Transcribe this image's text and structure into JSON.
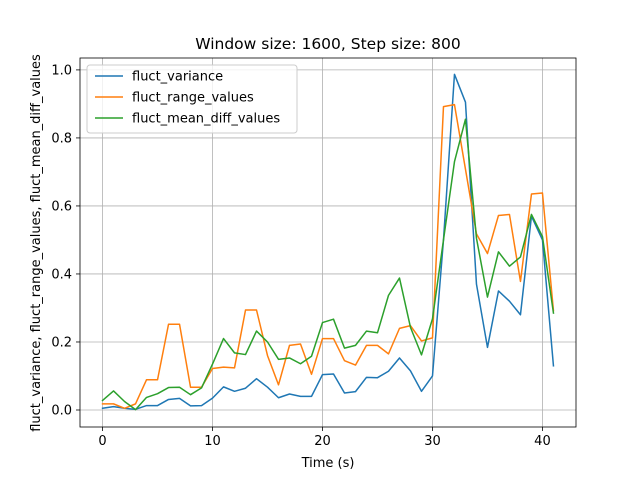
{
  "chart_data": {
    "type": "line",
    "title": "Window size: 1600, Step size: 800",
    "xlabel": "Time (s)",
    "ylabel": "fluct_variance, fluct_range_values, fluct_mean_diff_values",
    "xlim": [
      -2.05,
      43.05
    ],
    "ylim": [
      -0.05,
      1.035
    ],
    "xticks": [
      0,
      10,
      20,
      30,
      40
    ],
    "yticks": [
      0.0,
      0.2,
      0.4,
      0.6,
      0.8,
      1.0
    ],
    "xtick_labels": [
      "0",
      "10",
      "20",
      "30",
      "40"
    ],
    "ytick_labels": [
      "0.0",
      "0.2",
      "0.4",
      "0.6",
      "0.8",
      "1.0"
    ],
    "grid": true,
    "legend_position": "upper-left",
    "x": [
      0,
      1,
      2,
      3,
      4,
      5,
      6,
      7,
      8,
      9,
      10,
      11,
      12,
      13,
      14,
      15,
      16,
      17,
      18,
      19,
      20,
      21,
      22,
      23,
      24,
      25,
      26,
      27,
      28,
      29,
      30,
      31,
      32,
      33,
      34,
      35,
      36,
      37,
      38,
      39,
      40,
      41
    ],
    "series": [
      {
        "name": "fluct_variance",
        "color": "#1f77b4",
        "values": [
          0.005,
          0.01,
          0.005,
          0.002,
          0.013,
          0.013,
          0.031,
          0.034,
          0.012,
          0.013,
          0.035,
          0.068,
          0.055,
          0.064,
          0.092,
          0.067,
          0.036,
          0.047,
          0.04,
          0.04,
          0.104,
          0.106,
          0.05,
          0.054,
          0.096,
          0.095,
          0.114,
          0.153,
          0.115,
          0.055,
          0.1,
          0.5,
          0.987,
          0.905,
          0.37,
          0.184,
          0.35,
          0.32,
          0.28,
          0.57,
          0.5,
          0.13
        ]
      },
      {
        "name": "fluct_range_values",
        "color": "#ff7f0e",
        "values": [
          0.018,
          0.018,
          0.005,
          0.018,
          0.089,
          0.089,
          0.252,
          0.252,
          0.067,
          0.067,
          0.122,
          0.126,
          0.124,
          0.294,
          0.294,
          0.16,
          0.074,
          0.19,
          0.194,
          0.105,
          0.21,
          0.21,
          0.145,
          0.132,
          0.19,
          0.19,
          0.165,
          0.24,
          0.248,
          0.203,
          0.212,
          0.892,
          0.898,
          0.708,
          0.518,
          0.46,
          0.572,
          0.575,
          0.378,
          0.635,
          0.638,
          0.292
        ]
      },
      {
        "name": "fluct_mean_diff_values",
        "color": "#2ca02c",
        "values": [
          0.028,
          0.056,
          0.025,
          0.001,
          0.037,
          0.048,
          0.066,
          0.067,
          0.045,
          0.065,
          0.135,
          0.21,
          0.168,
          0.163,
          0.232,
          0.2,
          0.149,
          0.153,
          0.136,
          0.158,
          0.257,
          0.267,
          0.182,
          0.19,
          0.232,
          0.227,
          0.337,
          0.388,
          0.243,
          0.162,
          0.268,
          0.5,
          0.73,
          0.855,
          0.505,
          0.332,
          0.465,
          0.423,
          0.45,
          0.575,
          0.51,
          0.285
        ]
      }
    ]
  }
}
